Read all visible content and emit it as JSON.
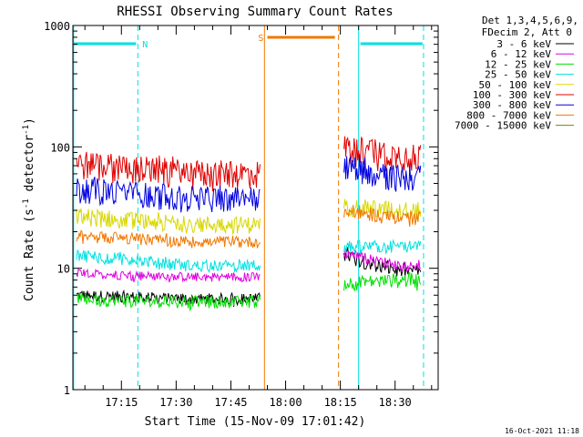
{
  "chart_data": {
    "type": "line",
    "title": "RHESSI Observing Summary Count Rates",
    "xlabel": "Start Time (15-Nov-09 17:01:42)",
    "ylabel_main": "Count Rate (s",
    "ylabel_sup1": "-1",
    "ylabel_mid": " detector",
    "ylabel_sup2": "-1",
    "ylabel_end": ")",
    "yscale": "log",
    "ylim": [
      1,
      1000
    ],
    "x_unit": "minutes after 17:00",
    "xlim": [
      1.7,
      101.8
    ],
    "x_ticks": [
      {
        "value": 15,
        "label": "17:15"
      },
      {
        "value": 30,
        "label": "17:30"
      },
      {
        "value": 45,
        "label": "17:45"
      },
      {
        "value": 60,
        "label": "18:00"
      },
      {
        "value": 75,
        "label": "18:15"
      },
      {
        "value": 90,
        "label": "18:30"
      }
    ],
    "y_ticks": [
      {
        "value": 1,
        "label": "1"
      },
      {
        "value": 10,
        "label": "10"
      },
      {
        "value": 100,
        "label": "100"
      },
      {
        "value": 1000,
        "label": "1000"
      }
    ],
    "legend_header": [
      "Det 1,3,4,5,6,9,",
      "FDecim 2, Att 0"
    ],
    "timestamp": "16-Oct-2021 11:18",
    "segments": [
      [
        2.7,
        53.0
      ],
      [
        76.0,
        97.0
      ]
    ],
    "series": [
      {
        "name": "3 - 6 keV",
        "color": "#000000",
        "seg1": [
          6.0,
          5.6
        ],
        "seg2": [
          13.0,
          9.5
        ],
        "noise": 0.9
      },
      {
        "name": "6 - 12 keV",
        "color": "#e000e0",
        "seg1": [
          9.0,
          8.5
        ],
        "seg2": [
          13.5,
          10.5
        ],
        "noise": 0.6
      },
      {
        "name": "12 - 25 keV",
        "color": "#00e000",
        "seg1": [
          5.5,
          5.3
        ],
        "seg2": [
          7.5,
          8.0
        ],
        "noise": 1.0
      },
      {
        "name": "25 - 50 keV",
        "color": "#00e0e0",
        "seg1": [
          13.0,
          10.5
        ],
        "seg2": [
          15.0,
          15.0
        ],
        "noise": 0.7
      },
      {
        "name": "50 - 100 keV",
        "color": "#d8d800",
        "seg1": [
          27.0,
          23.0
        ],
        "seg2": [
          33.0,
          30.0
        ],
        "noise": 0.8
      },
      {
        "name": "100 - 300 keV",
        "color": "#e00000",
        "seg1": [
          74.0,
          61.0
        ],
        "seg2": [
          100.0,
          86.0
        ],
        "noise": 1.0
      },
      {
        "name": "300 - 800 keV",
        "color": "#0000e0",
        "seg1": [
          46.0,
          38.0
        ],
        "seg2": [
          72.0,
          56.0
        ],
        "noise": 1.0
      },
      {
        "name": "800 - 7000 keV",
        "color": "#f07800",
        "seg1": [
          18.5,
          16.5
        ],
        "seg2": [
          30.0,
          26.0
        ],
        "noise": 0.6
      },
      {
        "name": "7000 - 15000 keV",
        "color": "#808000",
        "seg1": null,
        "seg2": null,
        "noise": 0
      }
    ],
    "annotations": [
      {
        "kind": "night",
        "label": "N",
        "color": "#00e0e0",
        "solid_x": 1.9,
        "dash_x": 19.5,
        "bar": [
          2.0,
          19.0
        ]
      },
      {
        "kind": "night",
        "label": "",
        "color": "#00e0e0",
        "solid_x": 80.0,
        "dash_x": 97.8,
        "bar": [
          80.5,
          97.5
        ]
      },
      {
        "kind": "saa",
        "label": "S",
        "color": "#f07800",
        "solid_x": 54.2,
        "dash_x": 74.5,
        "bar": [
          55.0,
          73.5
        ]
      }
    ]
  }
}
